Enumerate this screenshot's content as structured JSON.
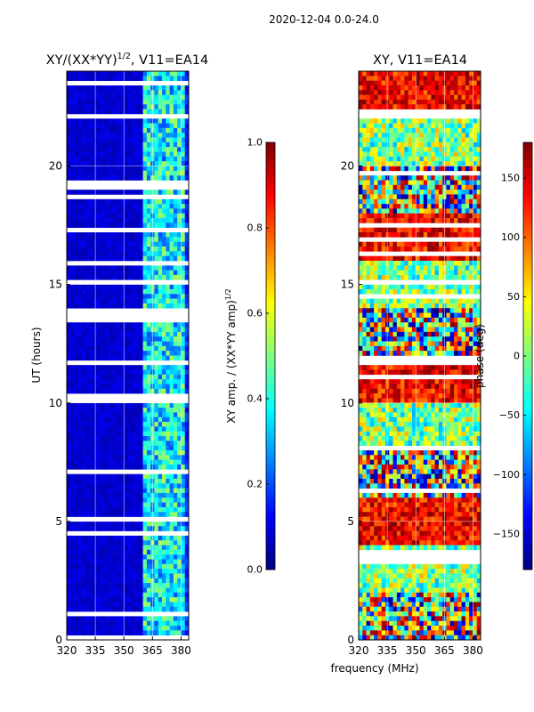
{
  "figure": {
    "suptitle": "2020-12-04 0.0-24.0"
  },
  "colors": {
    "jet": [
      "#00007f",
      "#0000ff",
      "#007fff",
      "#00ffff",
      "#7fff7f",
      "#ffff00",
      "#ff7f00",
      "#ff0000",
      "#7f0000"
    ],
    "blank_row": "#ffffff"
  },
  "chart_data": [
    {
      "type": "heatmap",
      "title": "XY/(XX*YY)^1/2, V11=EA14",
      "title_main": "XY/(XX*YY)",
      "title_sup": "1/2",
      "title_tail": ", V11=EA14",
      "xlabel": "",
      "ylabel": "UT (hours)",
      "xlim": [
        320,
        384
      ],
      "ylim": [
        0,
        24
      ],
      "x_ticks": [
        320,
        335,
        350,
        365,
        380
      ],
      "y_ticks": [
        0,
        5,
        10,
        15,
        20
      ],
      "x_tick_labels": [
        "320",
        "335",
        "350",
        "365",
        "380"
      ],
      "y_tick_labels": [
        "0",
        "5",
        "10",
        "15",
        "20"
      ],
      "grid": true,
      "low_value_band_mhz": [
        320,
        361
      ],
      "high_value_band_mhz": [
        361,
        382
      ],
      "value_range": [
        0.0,
        1.0
      ],
      "colorbar": {
        "label": "XY amp. / (XX*YY amp)^1/2",
        "label_main": "XY amp. / (XX*YY amp)",
        "label_sup": "1/2",
        "range": [
          0.0,
          1.0
        ],
        "ticks": [
          0.0,
          0.2,
          0.4,
          0.6,
          0.8,
          1.0
        ],
        "tick_labels": [
          "0.0",
          "0.2",
          "0.4",
          "0.6",
          "0.8",
          "1.0"
        ]
      }
    },
    {
      "type": "heatmap",
      "title": "XY, V11=EA14",
      "xlabel": "frequency (MHz)",
      "ylabel": "",
      "xlim": [
        320,
        384
      ],
      "ylim": [
        0,
        24
      ],
      "x_ticks": [
        320,
        335,
        350,
        365,
        380
      ],
      "y_ticks": [
        0,
        5,
        10,
        15,
        20
      ],
      "x_tick_labels": [
        "320",
        "335",
        "350",
        "365",
        "380"
      ],
      "y_tick_labels": [
        "0",
        "5",
        "10",
        "15",
        "20"
      ],
      "grid": true,
      "value_range": [
        -180,
        180
      ],
      "colorbar": {
        "label": "phase (deg)",
        "range": [
          -180,
          180
        ],
        "ticks": [
          -150,
          -100,
          -50,
          0,
          50,
          100,
          150
        ],
        "tick_labels": [
          "−150",
          "−100",
          "−50",
          "0",
          "50",
          "100",
          "150"
        ]
      }
    }
  ]
}
